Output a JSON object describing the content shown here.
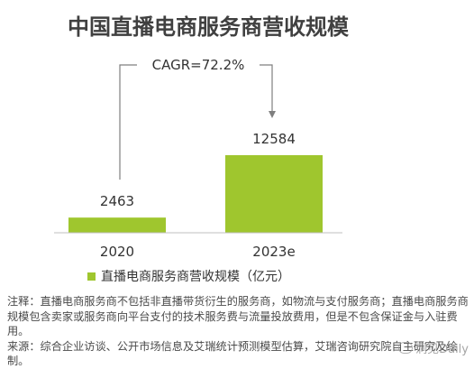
{
  "title": "中国直播电商服务商营收规模",
  "chart_data": {
    "type": "bar",
    "title": "中国直播电商服务商营收规模",
    "categories": [
      "2020",
      "2023e"
    ],
    "series": [
      {
        "name": "直播电商服务商营收规模（亿元）",
        "values": [
          2463,
          12584
        ]
      }
    ],
    "data_labels": [
      "2463",
      "12584"
    ],
    "annotation": "CAGR=72.2%",
    "ylim": [
      0,
      14000
    ],
    "grid": false,
    "legend_position": "bottom-left",
    "bar_color": "#9fc62e"
  },
  "notes": {
    "note": "注释：直播电商服务商不包括非直播带货衍生的服务商，如物流与支付服务商；直播电商服务商规模包含卖家或服务商向平台支付的技术服务费与流量投放费用，但是不包含保证金与入驻费用。",
    "source": "来源：综合企业访谈、公开市场信息及艾瑞统计预测模型估算，艾瑞咨询研究院自主研究及绘制。"
  },
  "watermark": "洞见Daily"
}
